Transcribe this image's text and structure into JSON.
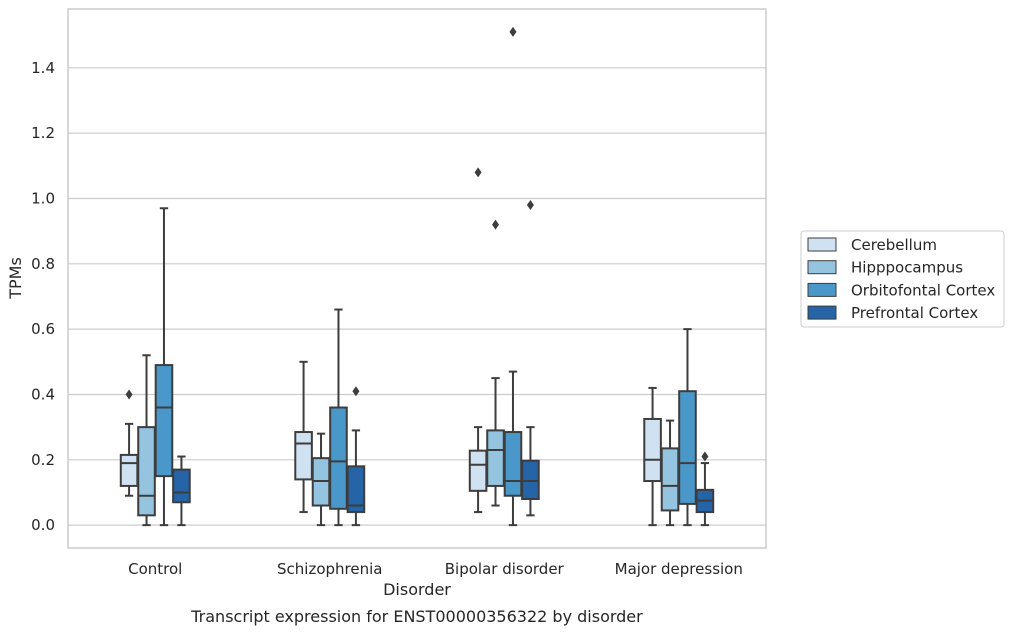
{
  "chart_data": {
    "type": "box",
    "title": "Transcript expression for ENST00000356322 by disorder",
    "xlabel": "Disorder",
    "ylabel": "TPMs",
    "ylim": [
      -0.07,
      1.58
    ],
    "yticks": [
      "0.0",
      "0.2",
      "0.4",
      "0.6",
      "0.8",
      "1.0",
      "1.2",
      "1.4"
    ],
    "grid": true,
    "legend_position": "right",
    "categories": [
      "Control",
      "Schizophrenia",
      "Bipolar disorder",
      "Major depression"
    ],
    "series": [
      {
        "name": "Cerebellum",
        "color": "#d0e1f2",
        "boxes": [
          {
            "whisker_low": 0.09,
            "q1": 0.12,
            "median": 0.19,
            "q3": 0.215,
            "whisker_high": 0.31,
            "outliers": [
              0.4
            ]
          },
          {
            "whisker_low": 0.04,
            "q1": 0.14,
            "median": 0.25,
            "q3": 0.285,
            "whisker_high": 0.5,
            "outliers": []
          },
          {
            "whisker_low": 0.04,
            "q1": 0.105,
            "median": 0.185,
            "q3": 0.228,
            "whisker_high": 0.3,
            "outliers": [
              1.08
            ]
          },
          {
            "whisker_low": 0.0,
            "q1": 0.135,
            "median": 0.2,
            "q3": 0.325,
            "whisker_high": 0.42,
            "outliers": []
          }
        ]
      },
      {
        "name": "Hipppocampus",
        "color": "#94c4df",
        "boxes": [
          {
            "whisker_low": 0.0,
            "q1": 0.03,
            "median": 0.09,
            "q3": 0.3,
            "whisker_high": 0.52,
            "outliers": []
          },
          {
            "whisker_low": 0.0,
            "q1": 0.06,
            "median": 0.135,
            "q3": 0.205,
            "whisker_high": 0.28,
            "outliers": []
          },
          {
            "whisker_low": 0.06,
            "q1": 0.12,
            "median": 0.23,
            "q3": 0.29,
            "whisker_high": 0.45,
            "outliers": [
              0.92
            ]
          },
          {
            "whisker_low": 0.0,
            "q1": 0.045,
            "median": 0.12,
            "q3": 0.235,
            "whisker_high": 0.32,
            "outliers": []
          }
        ]
      },
      {
        "name": "Orbitofontal Cortex",
        "color": "#4a98c9",
        "boxes": [
          {
            "whisker_low": 0.0,
            "q1": 0.15,
            "median": 0.36,
            "q3": 0.49,
            "whisker_high": 0.97,
            "outliers": []
          },
          {
            "whisker_low": 0.0,
            "q1": 0.05,
            "median": 0.195,
            "q3": 0.36,
            "whisker_high": 0.66,
            "outliers": []
          },
          {
            "whisker_low": 0.0,
            "q1": 0.09,
            "median": 0.135,
            "q3": 0.285,
            "whisker_high": 0.47,
            "outliers": [
              1.51
            ]
          },
          {
            "whisker_low": 0.0,
            "q1": 0.065,
            "median": 0.19,
            "q3": 0.41,
            "whisker_high": 0.6,
            "outliers": []
          }
        ]
      },
      {
        "name": "Prefrontal Cortex",
        "color": "#2464a7",
        "boxes": [
          {
            "whisker_low": 0.0,
            "q1": 0.07,
            "median": 0.1,
            "q3": 0.17,
            "whisker_high": 0.21,
            "outliers": []
          },
          {
            "whisker_low": 0.0,
            "q1": 0.04,
            "median": 0.06,
            "q3": 0.18,
            "whisker_high": 0.29,
            "outliers": [
              0.41
            ]
          },
          {
            "whisker_low": 0.03,
            "q1": 0.08,
            "median": 0.135,
            "q3": 0.197,
            "whisker_high": 0.3,
            "outliers": [
              0.98
            ]
          },
          {
            "whisker_low": 0.0,
            "q1": 0.04,
            "median": 0.075,
            "q3": 0.108,
            "whisker_high": 0.19,
            "outliers": [
              0.21
            ]
          }
        ]
      }
    ]
  }
}
